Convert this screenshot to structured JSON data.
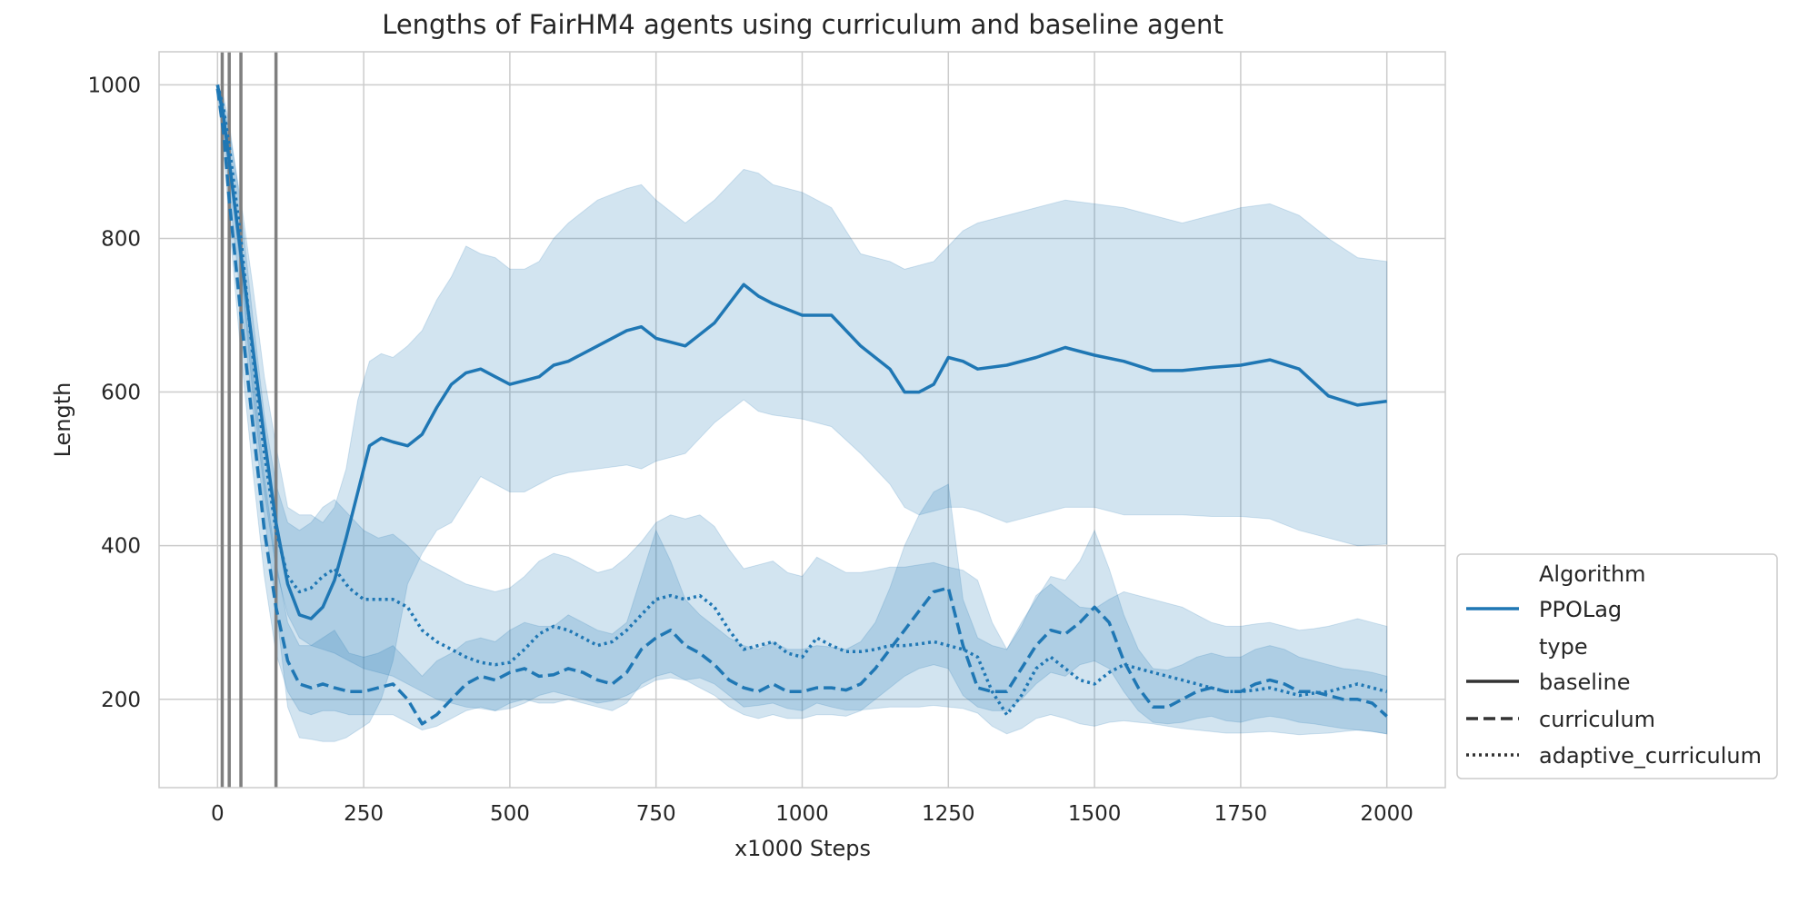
{
  "chart_data": {
    "type": "line",
    "title": "Lengths of FairHM4 agents using curriculum and baseline agent",
    "xlabel": "x1000 Steps",
    "ylabel": "Length",
    "xlim": [
      -100,
      2100
    ],
    "ylim": [
      85,
      1043
    ],
    "xticks": [
      0,
      250,
      500,
      750,
      1000,
      1250,
      1500,
      1750,
      2000
    ],
    "yticks": [
      200,
      400,
      600,
      800,
      1000
    ],
    "grid": true,
    "vertical_markers": [
      8,
      20,
      40,
      100
    ],
    "color": "#1f77b4",
    "legend": {
      "placement": "lower right, outside axes",
      "hue_title": "Algorithm",
      "hue_entries": [
        "PPOLag"
      ],
      "style_title": "type",
      "style_entries": [
        "baseline",
        "curriculum",
        "adaptive_curriculum"
      ]
    },
    "series": [
      {
        "name": "baseline",
        "dash": "solid",
        "x": [
          0,
          10,
          20,
          40,
          60,
          80,
          100,
          120,
          140,
          160,
          180,
          200,
          220,
          240,
          260,
          280,
          300,
          325,
          350,
          375,
          400,
          425,
          450,
          475,
          500,
          525,
          550,
          575,
          600,
          650,
          700,
          725,
          750,
          800,
          850,
          900,
          925,
          950,
          1000,
          1050,
          1100,
          1150,
          1175,
          1200,
          1225,
          1250,
          1275,
          1300,
          1350,
          1400,
          1450,
          1500,
          1550,
          1600,
          1650,
          1700,
          1750,
          1800,
          1850,
          1900,
          1950,
          2000
        ],
        "y": [
          1000,
          960,
          900,
          780,
          660,
          540,
          430,
          350,
          310,
          305,
          320,
          355,
          410,
          470,
          530,
          540,
          535,
          530,
          545,
          580,
          610,
          625,
          630,
          620,
          610,
          615,
          620,
          635,
          640,
          660,
          680,
          685,
          670,
          660,
          690,
          740,
          725,
          715,
          700,
          700,
          660,
          630,
          600,
          600,
          610,
          645,
          640,
          630,
          635,
          645,
          658,
          648,
          640,
          628,
          628,
          632,
          635,
          642,
          630,
          595,
          583,
          588
        ],
        "ci_lower": [
          990,
          940,
          860,
          720,
          580,
          440,
          320,
          190,
          150,
          148,
          145,
          145,
          150,
          160,
          170,
          200,
          250,
          350,
          390,
          420,
          430,
          460,
          490,
          480,
          470,
          470,
          480,
          490,
          495,
          500,
          505,
          500,
          510,
          520,
          560,
          590,
          575,
          570,
          565,
          555,
          520,
          480,
          450,
          440,
          445,
          450,
          450,
          445,
          430,
          440,
          450,
          450,
          440,
          440,
          440,
          438,
          438,
          435,
          420,
          410,
          400,
          402
        ],
        "ci_upper": [
          1000,
          975,
          940,
          850,
          740,
          620,
          530,
          450,
          440,
          440,
          430,
          450,
          500,
          590,
          640,
          650,
          645,
          660,
          680,
          720,
          750,
          790,
          780,
          775,
          760,
          760,
          770,
          800,
          820,
          850,
          865,
          870,
          850,
          820,
          850,
          890,
          885,
          870,
          860,
          840,
          780,
          770,
          760,
          765,
          770,
          790,
          810,
          820,
          830,
          840,
          850,
          845,
          840,
          830,
          820,
          830,
          840,
          845,
          830,
          800,
          775,
          770
        ]
      },
      {
        "name": "curriculum",
        "dash": "dashed",
        "x": [
          0,
          10,
          20,
          40,
          60,
          80,
          100,
          120,
          140,
          160,
          180,
          200,
          225,
          250,
          275,
          300,
          325,
          350,
          375,
          400,
          425,
          450,
          475,
          500,
          525,
          550,
          575,
          600,
          625,
          650,
          675,
          700,
          725,
          750,
          775,
          800,
          825,
          850,
          875,
          900,
          925,
          950,
          975,
          1000,
          1025,
          1050,
          1075,
          1100,
          1125,
          1150,
          1175,
          1200,
          1225,
          1250,
          1275,
          1300,
          1325,
          1350,
          1375,
          1400,
          1425,
          1450,
          1475,
          1500,
          1525,
          1550,
          1575,
          1600,
          1625,
          1650,
          1675,
          1700,
          1725,
          1750,
          1775,
          1800,
          1825,
          1850,
          1875,
          1900,
          1925,
          1950,
          1975,
          2000
        ],
        "y": [
          995,
          940,
          850,
          700,
          560,
          420,
          320,
          250,
          220,
          215,
          220,
          215,
          210,
          210,
          215,
          220,
          200,
          168,
          180,
          200,
          220,
          230,
          225,
          235,
          240,
          230,
          232,
          240,
          235,
          225,
          220,
          235,
          265,
          280,
          290,
          270,
          260,
          245,
          225,
          215,
          210,
          220,
          210,
          210,
          215,
          215,
          212,
          220,
          240,
          265,
          290,
          315,
          340,
          345,
          270,
          215,
          210,
          210,
          240,
          270,
          290,
          285,
          300,
          320,
          300,
          250,
          215,
          190,
          190,
          200,
          210,
          215,
          210,
          210,
          220,
          225,
          220,
          210,
          210,
          205,
          200,
          200,
          195,
          178
        ],
        "ci_lower": [
          985,
          920,
          820,
          650,
          500,
          360,
          260,
          210,
          185,
          180,
          185,
          185,
          180,
          180,
          180,
          180,
          170,
          160,
          165,
          175,
          185,
          190,
          185,
          195,
          200,
          195,
          195,
          200,
          195,
          190,
          185,
          195,
          220,
          230,
          235,
          225,
          215,
          205,
          190,
          180,
          175,
          180,
          175,
          175,
          180,
          180,
          178,
          185,
          200,
          215,
          230,
          240,
          245,
          240,
          205,
          190,
          185,
          185,
          200,
          220,
          235,
          230,
          245,
          250,
          240,
          210,
          185,
          170,
          168,
          170,
          175,
          178,
          172,
          170,
          175,
          178,
          175,
          170,
          168,
          165,
          162,
          160,
          158,
          155
        ],
        "ci_upper": [
          1000,
          960,
          890,
          760,
          630,
          490,
          380,
          300,
          270,
          270,
          280,
          290,
          260,
          255,
          260,
          270,
          250,
          230,
          250,
          260,
          275,
          280,
          275,
          290,
          300,
          295,
          295,
          310,
          300,
          290,
          285,
          300,
          360,
          420,
          380,
          330,
          310,
          295,
          280,
          270,
          265,
          275,
          265,
          265,
          270,
          268,
          265,
          275,
          300,
          345,
          400,
          440,
          470,
          480,
          330,
          280,
          270,
          265,
          300,
          330,
          360,
          355,
          380,
          420,
          370,
          310,
          265,
          240,
          238,
          245,
          255,
          260,
          255,
          255,
          265,
          270,
          265,
          255,
          250,
          245,
          240,
          238,
          235,
          230
        ]
      },
      {
        "name": "adaptive_curriculum",
        "dash": "dotted",
        "x": [
          0,
          10,
          20,
          40,
          60,
          80,
          100,
          120,
          140,
          160,
          180,
          200,
          225,
          250,
          275,
          300,
          325,
          350,
          375,
          400,
          425,
          450,
          475,
          500,
          525,
          550,
          575,
          600,
          625,
          650,
          675,
          700,
          725,
          750,
          775,
          800,
          825,
          850,
          875,
          900,
          925,
          950,
          975,
          1000,
          1025,
          1050,
          1075,
          1100,
          1125,
          1150,
          1175,
          1200,
          1225,
          1250,
          1275,
          1300,
          1325,
          1350,
          1375,
          1400,
          1425,
          1450,
          1475,
          1500,
          1525,
          1550,
          1575,
          1600,
          1625,
          1650,
          1675,
          1700,
          1725,
          1750,
          1775,
          1800,
          1825,
          1850,
          1875,
          1900,
          1925,
          1950,
          1975,
          2000
        ],
        "y": [
          1000,
          970,
          920,
          800,
          650,
          520,
          420,
          360,
          340,
          345,
          360,
          370,
          345,
          330,
          330,
          330,
          320,
          290,
          275,
          265,
          255,
          248,
          245,
          248,
          265,
          285,
          295,
          290,
          280,
          270,
          275,
          290,
          310,
          330,
          335,
          330,
          335,
          320,
          290,
          265,
          270,
          275,
          260,
          255,
          280,
          270,
          262,
          262,
          265,
          270,
          270,
          272,
          275,
          270,
          265,
          255,
          210,
          180,
          205,
          240,
          255,
          240,
          225,
          220,
          235,
          245,
          240,
          235,
          230,
          225,
          220,
          215,
          210,
          210,
          212,
          215,
          210,
          205,
          208,
          210,
          215,
          220,
          215,
          210
        ],
        "ci_lower": [
          990,
          950,
          890,
          760,
          600,
          470,
          370,
          310,
          280,
          270,
          265,
          260,
          250,
          240,
          235,
          230,
          220,
          210,
          200,
          195,
          190,
          188,
          185,
          188,
          195,
          205,
          210,
          205,
          200,
          195,
          198,
          205,
          215,
          225,
          228,
          225,
          228,
          220,
          205,
          190,
          192,
          195,
          188,
          185,
          195,
          190,
          186,
          186,
          188,
          190,
          190,
          190,
          192,
          190,
          188,
          182,
          165,
          155,
          162,
          175,
          180,
          175,
          168,
          165,
          170,
          172,
          170,
          168,
          165,
          162,
          160,
          158,
          156,
          156,
          157,
          158,
          156,
          154,
          155,
          156,
          158,
          160,
          158,
          155
        ],
        "ci_upper": [
          1000,
          985,
          950,
          840,
          700,
          570,
          480,
          430,
          420,
          430,
          450,
          460,
          440,
          420,
          410,
          415,
          400,
          380,
          370,
          360,
          350,
          345,
          340,
          345,
          360,
          380,
          390,
          385,
          375,
          365,
          370,
          385,
          405,
          430,
          440,
          435,
          440,
          425,
          395,
          370,
          375,
          380,
          365,
          360,
          385,
          375,
          365,
          365,
          368,
          372,
          372,
          375,
          378,
          372,
          368,
          355,
          300,
          265,
          295,
          335,
          350,
          335,
          320,
          318,
          330,
          340,
          335,
          330,
          325,
          320,
          310,
          300,
          295,
          295,
          298,
          300,
          295,
          290,
          292,
          295,
          300,
          305,
          300,
          295
        ]
      }
    ]
  }
}
